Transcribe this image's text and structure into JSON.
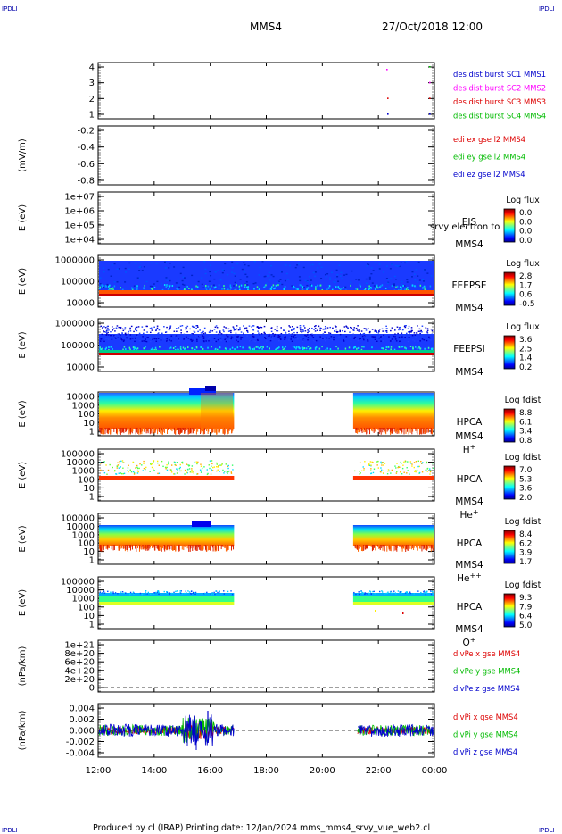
{
  "header": {
    "corner_tl": "IPDLI",
    "corner_tr": "IPDLI",
    "corner_bl": "IPDLI",
    "corner_br": "IPDLI",
    "mission": "MMS4",
    "datetime": "27/Oct/2018 12:00"
  },
  "footer": {
    "text": "Produced by cl (IRAP)   Printing date: 12/Jan/2024   mms_mms4_srvy_vue_web2.cl"
  },
  "colors": {
    "blue": "#0000cc",
    "red": "#dd0000",
    "green": "#00bb00",
    "magenta": "#ff00ff"
  },
  "chart_data": [
    {
      "id": "p1",
      "type": "scatter",
      "ticks": [
        "4",
        "3",
        "2",
        "1"
      ],
      "legend": [
        {
          "text": "des dist burst SC1 MMS1",
          "color": "#0000cc"
        },
        {
          "text": "des dist burst SC2 MMS2",
          "color": "#ff00ff"
        },
        {
          "text": "des dist burst SC3 MMS3",
          "color": "#dd0000"
        },
        {
          "text": "des dist burst SC4 MMS4",
          "color": "#00bb00"
        }
      ]
    },
    {
      "id": "p2",
      "type": "line",
      "ylabel": "(mV/m)",
      "ticks": [
        "-0.2",
        "-0.4",
        "-0.6",
        "-0.8"
      ],
      "legend": [
        {
          "text": "edi ex gse l2 MMS4",
          "color": "#dd0000"
        },
        {
          "text": "edi ey gse l2 MMS4",
          "color": "#00bb00"
        },
        {
          "text": "edi ez gse l2 MMS4",
          "color": "#0000cc"
        }
      ]
    },
    {
      "id": "p3",
      "type": "heatmap",
      "ylabel": "E (eV)",
      "ticks": [
        "1e+07",
        "1e+06",
        "1e+05",
        "1e+04"
      ],
      "inst": [
        "EIS",
        "MMS4"
      ],
      "overlay": "srvy electron to",
      "cbar_title": "Log flux",
      "cbar_ticks": [
        "0.0",
        "0.0",
        "0.0",
        "0.0"
      ]
    },
    {
      "id": "p4",
      "type": "heatmap",
      "ylabel": "E (eV)",
      "ticks": [
        "1000000",
        "100000",
        "10000"
      ],
      "inst": [
        "FEEPSE",
        "MMS4"
      ],
      "cbar_title": "Log flux",
      "cbar_ticks": [
        "2.8",
        "1.7",
        "0.6",
        "-0.5"
      ]
    },
    {
      "id": "p5",
      "type": "heatmap",
      "ylabel": "E (eV)",
      "ticks": [
        "1000000",
        "100000",
        "10000"
      ],
      "inst": [
        "FEEPSI",
        "MMS4"
      ],
      "cbar_title": "Log flux",
      "cbar_ticks": [
        "3.6",
        "2.5",
        "1.4",
        "0.2"
      ]
    },
    {
      "id": "p6",
      "type": "heatmap",
      "ylabel": "E (eV)",
      "ticks": [
        "10000",
        "1000",
        "100",
        "10",
        "1"
      ],
      "inst": [
        "HPCA",
        "MMS4"
      ],
      "species": "H",
      "species_sup": "+",
      "cbar_title": "Log fdist",
      "cbar_ticks": [
        "8.8",
        "6.1",
        "3.4",
        "0.8"
      ]
    },
    {
      "id": "p7",
      "type": "heatmap",
      "ylabel": "E (eV)",
      "ticks": [
        "100000",
        "10000",
        "1000",
        "100",
        "10",
        "1"
      ],
      "inst": [
        "HPCA",
        "MMS4"
      ],
      "species": "He",
      "species_sup": "+",
      "cbar_title": "Log fdist",
      "cbar_ticks": [
        "7.0",
        "5.3",
        "3.6",
        "2.0"
      ]
    },
    {
      "id": "p8",
      "type": "heatmap",
      "ylabel": "E (eV)",
      "ticks": [
        "100000",
        "10000",
        "1000",
        "100",
        "10",
        "1"
      ],
      "inst": [
        "HPCA",
        "MMS4"
      ],
      "species": "He",
      "species_sup": "++",
      "cbar_title": "Log fdist",
      "cbar_ticks": [
        "8.4",
        "6.2",
        "3.9",
        "1.7"
      ]
    },
    {
      "id": "p9",
      "type": "heatmap",
      "ylabel": "E (eV)",
      "ticks": [
        "100000",
        "10000",
        "1000",
        "100",
        "10",
        "1"
      ],
      "inst": [
        "HPCA",
        "MMS4"
      ],
      "species": "O",
      "species_sup": "+",
      "cbar_title": "Log fdist",
      "cbar_ticks": [
        "9.3",
        "7.9",
        "6.4",
        "5.0"
      ]
    },
    {
      "id": "p10",
      "type": "line",
      "ylabel": "(nPa/km)",
      "ticks": [
        "1e+21",
        "8e+20",
        "6e+20",
        "4e+20",
        "2e+20",
        "0"
      ],
      "legend": [
        {
          "text": "divPe x gse MMS4",
          "color": "#dd0000"
        },
        {
          "text": "divPe y gse MMS4",
          "color": "#00bb00"
        },
        {
          "text": "divPe z gse MMS4",
          "color": "#0000cc"
        }
      ]
    },
    {
      "id": "p11",
      "type": "line",
      "ylabel": "(nPa/km)",
      "ticks": [
        "0.004",
        "0.002",
        "0.000",
        "-0.002",
        "-0.004"
      ],
      "legend": [
        {
          "text": "divPi x gse MMS4",
          "color": "#dd0000"
        },
        {
          "text": "divPi y gse MMS4",
          "color": "#00bb00"
        },
        {
          "text": "divPi z gse MMS4",
          "color": "#0000cc"
        }
      ]
    }
  ],
  "time_axis": {
    "ticks": [
      "12:00",
      "14:00",
      "16:00",
      "18:00",
      "20:00",
      "22:00",
      "00:00"
    ]
  }
}
